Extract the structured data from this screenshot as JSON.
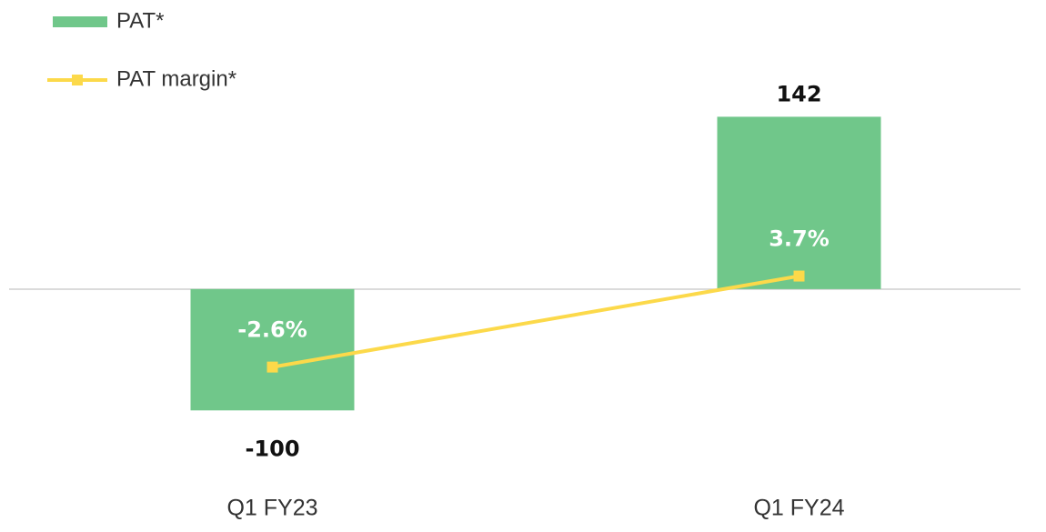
{
  "chart_data": {
    "type": "bar",
    "categories": [
      "Q1 FY23",
      "Q1 FY24"
    ],
    "series": [
      {
        "name": "PAT*",
        "type": "bar",
        "color": "#70c78a",
        "values": [
          -100,
          142
        ]
      },
      {
        "name": "PAT margin*",
        "type": "line",
        "axis": "y2",
        "color": "#fcd94a",
        "values": [
          -2.6,
          3.7
        ],
        "value_labels": [
          "-2.6%",
          "3.7%"
        ]
      }
    ],
    "ylim": [
      -150,
      200
    ],
    "y2lim": [
      -9.8,
      19.6
    ],
    "legend": "top-left",
    "grid": false
  }
}
